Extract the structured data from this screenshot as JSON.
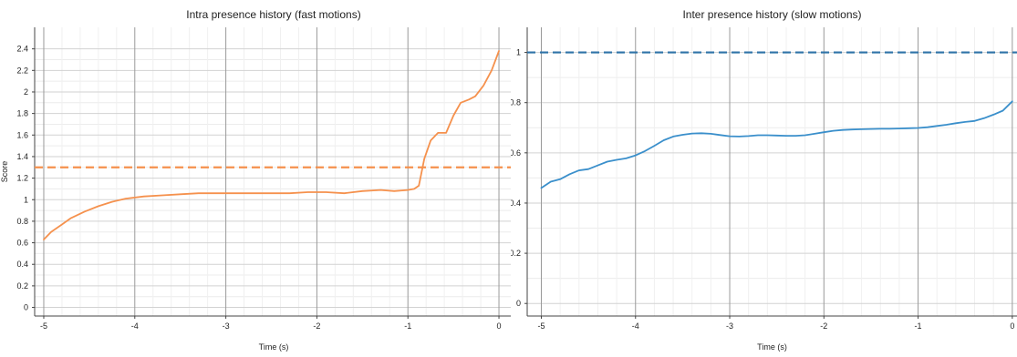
{
  "chart_data": [
    {
      "type": "line",
      "title": "Intra presence history (fast motions)",
      "xlabel": "Time (s)",
      "ylabel": "Score",
      "xlim": [
        -5.1,
        0.15
      ],
      "ylim": [
        -0.08,
        2.6
      ],
      "xticks": [
        -5,
        -4,
        -3,
        -2,
        -1,
        0
      ],
      "xtick_labels": [
        "-5",
        "-4",
        "-3",
        "-2",
        "-1",
        "0"
      ],
      "yticks": [
        0,
        0.2,
        0.4,
        0.6,
        0.8,
        1,
        1.2,
        1.4,
        1.6,
        1.8,
        2,
        2.2,
        2.4
      ],
      "ytick_labels": [
        "0",
        "0.2",
        "0.4",
        "0.6",
        "0.8",
        "1",
        "1.2",
        "1.4",
        "1.6",
        "1.8",
        "2",
        "2.2",
        "2.4"
      ],
      "grid": true,
      "series": [
        {
          "color": "#f5914d",
          "x": [
            -5,
            -4.92,
            -4.8,
            -4.7,
            -4.55,
            -4.4,
            -4.25,
            -4.1,
            -4,
            -3.9,
            -3.7,
            -3.5,
            -3.3,
            -3.1,
            -2.9,
            -2.7,
            -2.5,
            -2.3,
            -2.1,
            -1.9,
            -1.7,
            -1.5,
            -1.3,
            -1.15,
            -1,
            -0.93,
            -0.88,
            -0.82,
            -0.75,
            -0.67,
            -0.58,
            -0.5,
            -0.42,
            -0.33,
            -0.26,
            -0.17,
            -0.08,
            0
          ],
          "y": [
            0.63,
            0.7,
            0.77,
            0.83,
            0.89,
            0.94,
            0.98,
            1.01,
            1.02,
            1.03,
            1.04,
            1.05,
            1.06,
            1.06,
            1.06,
            1.06,
            1.06,
            1.06,
            1.07,
            1.07,
            1.06,
            1.08,
            1.09,
            1.08,
            1.09,
            1.1,
            1.13,
            1.38,
            1.55,
            1.62,
            1.62,
            1.78,
            1.9,
            1.93,
            1.96,
            2.06,
            2.2,
            2.38
          ]
        }
      ],
      "reference_lines": [
        {
          "y": 1.3,
          "color": "#f5914d",
          "style": "dashed"
        }
      ]
    },
    {
      "type": "line",
      "title": "Inter presence history (slow motions)",
      "xlabel": "Time (s)",
      "ylabel": "Score",
      "xlim": [
        -5.15,
        0.05
      ],
      "ylim": [
        -0.05,
        1.1
      ],
      "xticks": [
        -5,
        -4,
        -3,
        -2,
        -1,
        0
      ],
      "xtick_labels": [
        "-5",
        "-4",
        "-3",
        "-2",
        "-1",
        "0"
      ],
      "yticks": [
        0,
        0.2,
        0.4,
        0.6,
        0.8,
        1
      ],
      "ytick_labels": [
        "0",
        "0.2",
        "0.4",
        "0.6",
        "0.8",
        "1"
      ],
      "grid": true,
      "series": [
        {
          "color": "#3a8fcb",
          "x": [
            -5,
            -4.9,
            -4.8,
            -4.7,
            -4.6,
            -4.5,
            -4.4,
            -4.3,
            -4.2,
            -4.1,
            -4,
            -3.9,
            -3.8,
            -3.7,
            -3.6,
            -3.5,
            -3.4,
            -3.3,
            -3.2,
            -3.1,
            -3,
            -2.9,
            -2.8,
            -2.7,
            -2.6,
            -2.5,
            -2.4,
            -2.3,
            -2.2,
            -2.1,
            -2,
            -1.9,
            -1.8,
            -1.7,
            -1.6,
            -1.5,
            -1.4,
            -1.3,
            -1.2,
            -1.1,
            -1,
            -0.9,
            -0.8,
            -0.7,
            -0.6,
            -0.5,
            -0.4,
            -0.3,
            -0.2,
            -0.1,
            0
          ],
          "y": [
            0.46,
            0.485,
            0.495,
            0.515,
            0.53,
            0.535,
            0.55,
            0.565,
            0.572,
            0.578,
            0.59,
            0.607,
            0.628,
            0.65,
            0.665,
            0.672,
            0.677,
            0.678,
            0.676,
            0.671,
            0.666,
            0.665,
            0.667,
            0.67,
            0.67,
            0.669,
            0.668,
            0.668,
            0.67,
            0.676,
            0.682,
            0.688,
            0.691,
            0.693,
            0.694,
            0.695,
            0.696,
            0.696,
            0.697,
            0.698,
            0.699,
            0.702,
            0.707,
            0.712,
            0.718,
            0.723,
            0.727,
            0.738,
            0.752,
            0.768,
            0.805
          ]
        }
      ],
      "reference_lines": [
        {
          "y": 1.0,
          "color": "#2f73a8",
          "style": "dashed"
        }
      ]
    }
  ]
}
